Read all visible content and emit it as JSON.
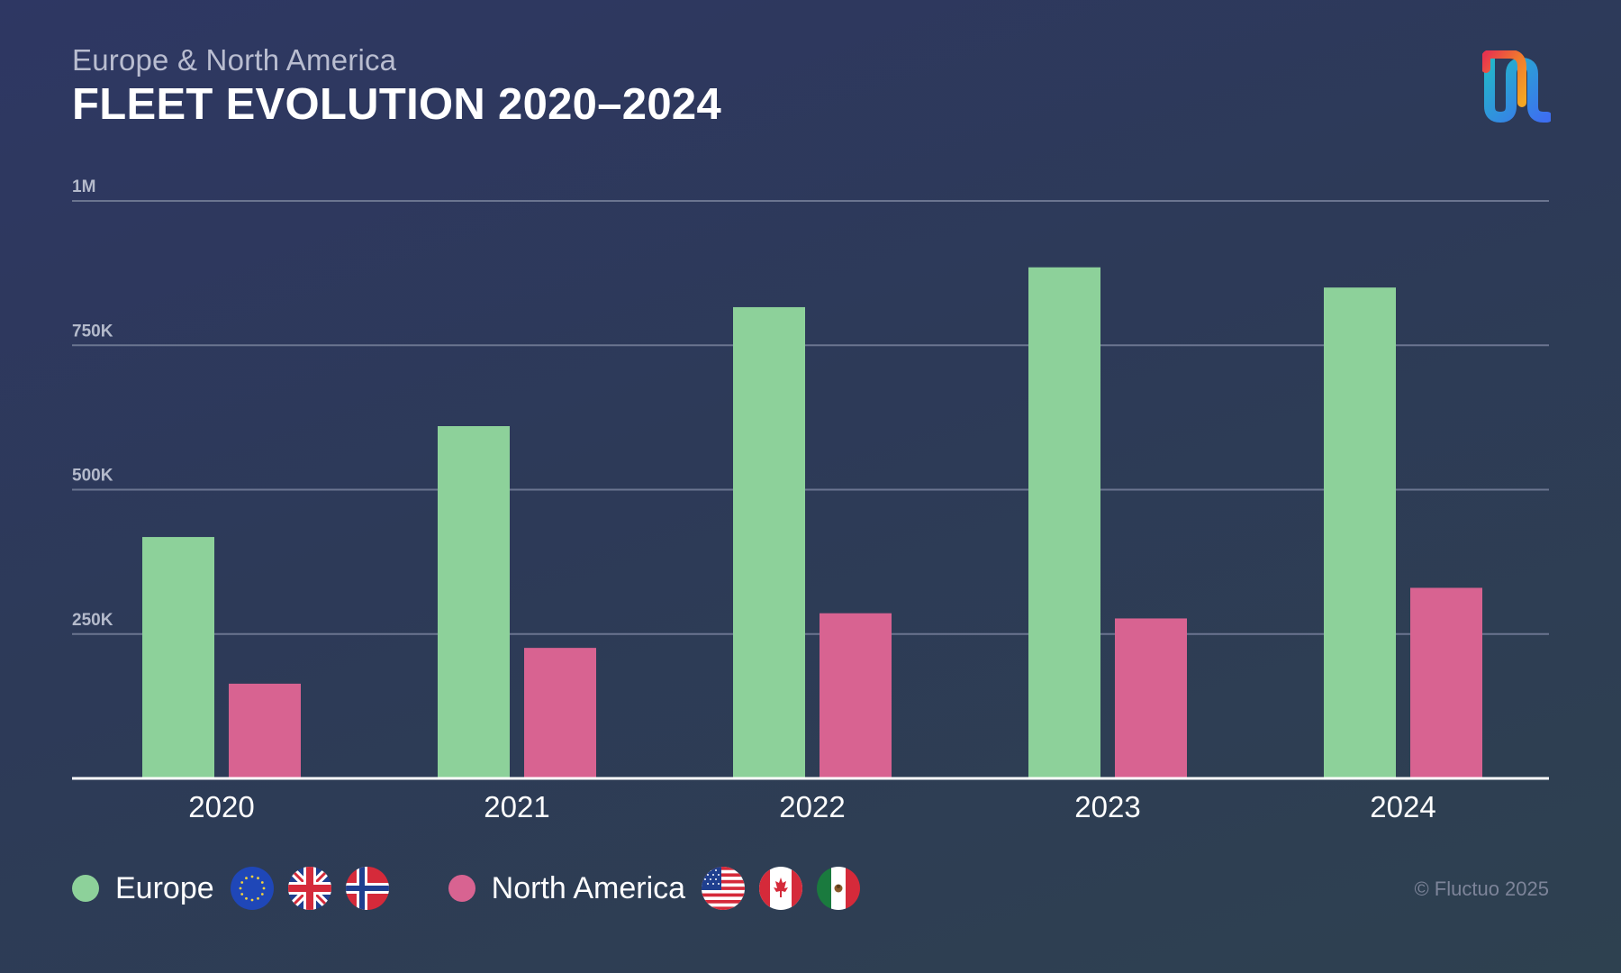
{
  "header": {
    "subtitle": "Europe & North America",
    "title": "FLEET EVOLUTION 2020–2024"
  },
  "logo": {
    "name": "fluctuo-logo"
  },
  "chart_data": {
    "type": "bar",
    "subtitle": "Europe & North America",
    "title": "FLEET EVOLUTION 2020–2024",
    "categories": [
      "2020",
      "2021",
      "2022",
      "2023",
      "2024"
    ],
    "series": [
      {
        "name": "Europe",
        "values": [
          418000,
          610000,
          816000,
          885000,
          850000
        ],
        "color": "#8dd19a"
      },
      {
        "name": "North America",
        "values": [
          164000,
          226000,
          286000,
          277000,
          330000
        ],
        "color": "#d86391"
      }
    ],
    "ylim": [
      0,
      1000000
    ],
    "yticks": [
      250000,
      500000,
      750000,
      1000000
    ],
    "ytick_labels": [
      "250K",
      "500K",
      "750K",
      "1M"
    ],
    "grid": true,
    "legend_position": "bottom-left"
  },
  "legend": {
    "items": [
      {
        "label": "Europe",
        "color": "#8dd19a",
        "flags": [
          "eu-flag-icon",
          "uk-flag-icon",
          "norway-flag-icon"
        ]
      },
      {
        "label": "North America",
        "color": "#d86391",
        "flags": [
          "usa-flag-icon",
          "canada-flag-icon",
          "mexico-flag-icon"
        ]
      }
    ]
  },
  "footer": {
    "copyright": "© Fluctuo 2025"
  }
}
